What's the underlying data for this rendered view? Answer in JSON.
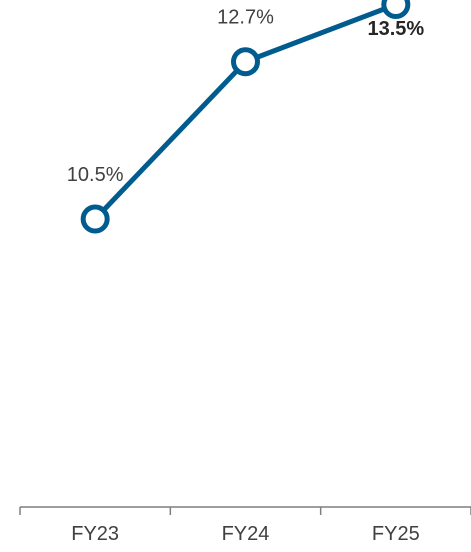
{
  "chart_data": {
    "type": "line",
    "categories": [
      "FY23",
      "FY24",
      "FY25"
    ],
    "series": [
      {
        "values": [
          10.5,
          12.7,
          13.5
        ],
        "labels": [
          "10.5%",
          "12.7%",
          "13.5%"
        ]
      }
    ],
    "highlighted_label_index": 2,
    "title": "",
    "xlabel": "",
    "ylabel": "",
    "grid": false,
    "colors": {
      "line": "#005b8f",
      "marker_fill": "#ffffff",
      "axis": "#7f7f7f",
      "text": "#404040"
    }
  }
}
